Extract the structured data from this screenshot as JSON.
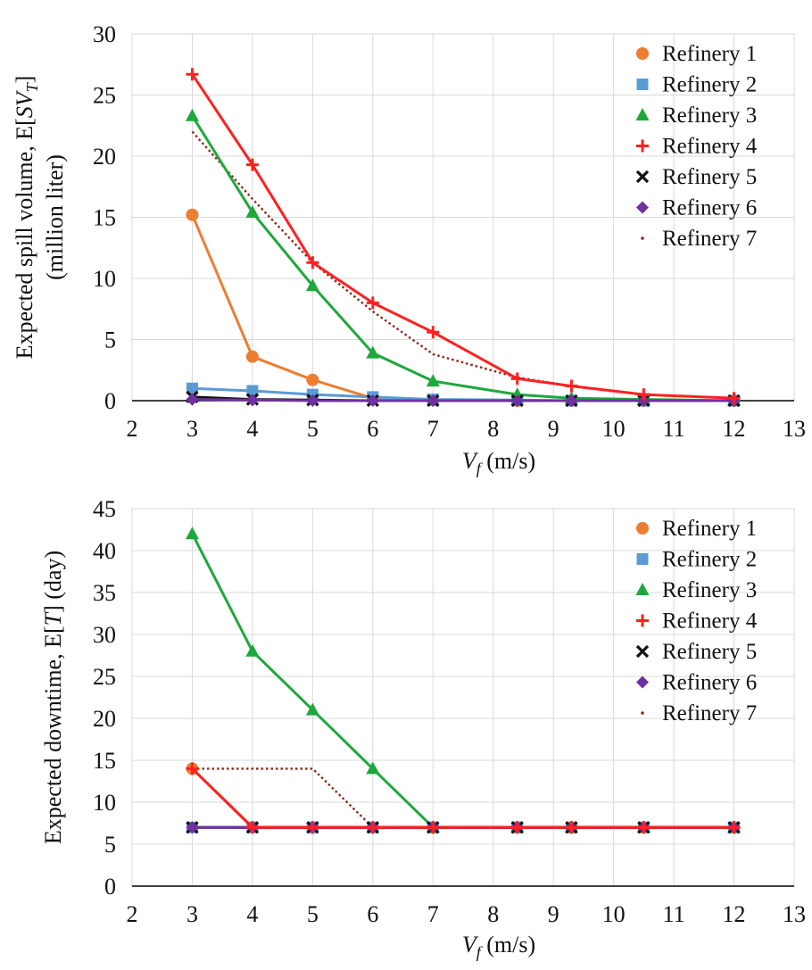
{
  "chart_data": [
    {
      "type": "line",
      "ylabel": "Expected spill volume, E[SV_T]",
      "ylabel_line2": "(million liter)",
      "ylabel_pre": "Expected spill volume, E[",
      "ylabel_var": "SV",
      "ylabel_sub": "T",
      "ylabel_post": "]",
      "xlabel": "V_f (m/s)",
      "xlabel_var": "V",
      "xlabel_sub": "f",
      "xlabel_unit": " (m/s)",
      "xlim": [
        2,
        13
      ],
      "ylim": [
        0,
        30
      ],
      "xticks": [
        "2",
        "3",
        "4",
        "5",
        "6",
        "7",
        "8",
        "9",
        "10",
        "11",
        "12",
        "13"
      ],
      "yticks": [
        "0",
        "5",
        "10",
        "15",
        "20",
        "25",
        "30"
      ],
      "grid": true,
      "legend_position": "top-right",
      "series": [
        {
          "name": "Refinery 1",
          "color": "#ED7D31",
          "marker": "circle",
          "line": "solid",
          "x": [
            3,
            4,
            5,
            6,
            7,
            8.4,
            9.3,
            10.5,
            12
          ],
          "y": [
            15.2,
            3.6,
            1.7,
            0.2,
            0.05,
            0,
            0,
            0,
            0
          ]
        },
        {
          "name": "Refinery 2",
          "color": "#5B9BD5",
          "marker": "square",
          "line": "solid",
          "x": [
            3,
            4,
            5,
            6,
            7,
            8.4,
            9.3,
            10.5,
            12
          ],
          "y": [
            1.0,
            0.8,
            0.5,
            0.3,
            0.1,
            0.05,
            0,
            0,
            0
          ]
        },
        {
          "name": "Refinery 3",
          "color": "#1EA83C",
          "marker": "triangle",
          "line": "solid",
          "x": [
            3,
            4,
            5,
            6,
            7,
            8.4,
            9.3,
            10.5,
            12
          ],
          "y": [
            23.3,
            15.4,
            9.4,
            3.9,
            1.6,
            0.5,
            0.2,
            0.1,
            0
          ]
        },
        {
          "name": "Refinery 4",
          "color": "#FF2020",
          "marker": "plus",
          "line": "solid",
          "x": [
            3,
            4,
            5,
            6,
            7,
            8.4,
            9.3,
            10.5,
            12
          ],
          "y": [
            26.7,
            19.3,
            11.3,
            8.0,
            5.6,
            1.8,
            1.2,
            0.5,
            0.2
          ]
        },
        {
          "name": "Refinery 5",
          "color": "#111111",
          "marker": "x",
          "line": "solid",
          "x": [
            3,
            4,
            5,
            6,
            7,
            8.4,
            9.3,
            10.5,
            12
          ],
          "y": [
            0.3,
            0.1,
            0.05,
            0,
            0,
            0,
            0,
            0,
            0
          ]
        },
        {
          "name": "Refinery 6",
          "color": "#7030A0",
          "marker": "diamond",
          "line": "solid",
          "x": [
            3,
            4,
            5,
            6,
            7,
            8.4,
            9.3,
            10.5,
            12
          ],
          "y": [
            0.1,
            0.05,
            0,
            0,
            0,
            0,
            0,
            0,
            0
          ]
        },
        {
          "name": "Refinery 7",
          "color": "#8B2A1A",
          "marker": "dot",
          "line": "dotted",
          "x": [
            3,
            4,
            5,
            6,
            7,
            8.4,
            9.3,
            10.5,
            12
          ],
          "y": [
            22.0,
            16.5,
            11.3,
            7.3,
            3.8,
            1.9,
            1.2,
            0.5,
            0.2
          ]
        }
      ]
    },
    {
      "type": "line",
      "ylabel": "Expected downtime, E[T] (day)",
      "ylabel_pre": "Expected downtime, E[",
      "ylabel_var": "T",
      "ylabel_post": "] (day)",
      "xlabel": "V_f (m/s)",
      "xlabel_var": "V",
      "xlabel_sub": "f",
      "xlabel_unit": " (m/s)",
      "xlim": [
        2,
        13
      ],
      "ylim": [
        0,
        45
      ],
      "xticks": [
        "2",
        "3",
        "4",
        "5",
        "6",
        "7",
        "8",
        "9",
        "10",
        "11",
        "12",
        "13"
      ],
      "yticks": [
        "0",
        "5",
        "10",
        "15",
        "20",
        "25",
        "30",
        "35",
        "40",
        "45"
      ],
      "grid": true,
      "legend_position": "top-right",
      "series": [
        {
          "name": "Refinery 1",
          "color": "#ED7D31",
          "marker": "circle",
          "line": "solid",
          "x": [
            3,
            4,
            5,
            6,
            7,
            8.4,
            9.3,
            10.5,
            12
          ],
          "y": [
            14,
            7,
            7,
            7,
            7,
            7,
            7,
            7,
            7
          ]
        },
        {
          "name": "Refinery 2",
          "color": "#5B9BD5",
          "marker": "square",
          "line": "solid",
          "x": [
            3,
            4,
            5,
            6,
            7,
            8.4,
            9.3,
            10.5,
            12
          ],
          "y": [
            7,
            7,
            7,
            7,
            7,
            7,
            7,
            7,
            7
          ]
        },
        {
          "name": "Refinery 3",
          "color": "#1EA83C",
          "marker": "triangle",
          "line": "solid",
          "x": [
            3,
            4,
            5,
            6,
            7,
            8.4,
            9.3,
            10.5,
            12
          ],
          "y": [
            42,
            28,
            21,
            14,
            7,
            7,
            7,
            7,
            7
          ]
        },
        {
          "name": "Refinery 4",
          "color": "#FF2020",
          "marker": "plus",
          "line": "solid",
          "x": [
            3,
            4,
            5,
            6,
            7,
            8.4,
            9.3,
            10.5,
            12
          ],
          "y": [
            14,
            7,
            7,
            7,
            7,
            7,
            7,
            7,
            7
          ]
        },
        {
          "name": "Refinery 5",
          "color": "#111111",
          "marker": "x",
          "line": "solid",
          "x": [
            3,
            4,
            5,
            6,
            7,
            8.4,
            9.3,
            10.5,
            12
          ],
          "y": [
            7,
            7,
            7,
            7,
            7,
            7,
            7,
            7,
            7
          ]
        },
        {
          "name": "Refinery 6",
          "color": "#7030A0",
          "marker": "diamond",
          "line": "solid",
          "x": [
            3,
            4,
            5,
            6,
            7,
            8.4,
            9.3,
            10.5,
            12
          ],
          "y": [
            7,
            7,
            7,
            7,
            7,
            7,
            7,
            7,
            7
          ]
        },
        {
          "name": "Refinery 7",
          "color": "#8B2A1A",
          "marker": "dot",
          "line": "dotted",
          "x": [
            3,
            4,
            5,
            6,
            7,
            8.4,
            9.3,
            10.5,
            12
          ],
          "y": [
            14,
            14,
            14,
            7,
            7,
            7,
            7,
            7,
            7
          ]
        }
      ]
    }
  ]
}
